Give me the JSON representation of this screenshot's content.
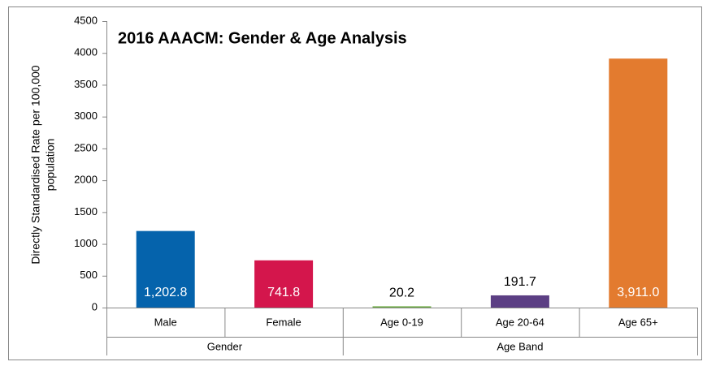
{
  "chart_data": {
    "type": "bar",
    "title": "2016 AAACM: Gender & Age Analysis",
    "ylabel": [
      "Directly Standardised Rate per 100,000",
      "population"
    ],
    "categories": [
      "Male",
      "Female",
      "Age 0-19",
      "Age 20-64",
      "Age 65+"
    ],
    "category_groups": [
      "Gender",
      "Gender",
      "Age Band",
      "Age Band",
      "Age Band"
    ],
    "values": [
      1202.8,
      741.8,
      20.2,
      191.7,
      3911.0
    ],
    "value_labels": [
      "1,202.8",
      "741.8",
      "20.2",
      "191.7",
      "3,911.0"
    ],
    "colors": [
      "#0563ac",
      "#d4164c",
      "#70ad47",
      "#5c3f84",
      "#e37b2f"
    ],
    "ylim": [
      0,
      4500
    ],
    "yticks": [
      0,
      500,
      1000,
      1500,
      2000,
      2500,
      3000,
      3500,
      4000,
      4500
    ],
    "grid": false
  }
}
